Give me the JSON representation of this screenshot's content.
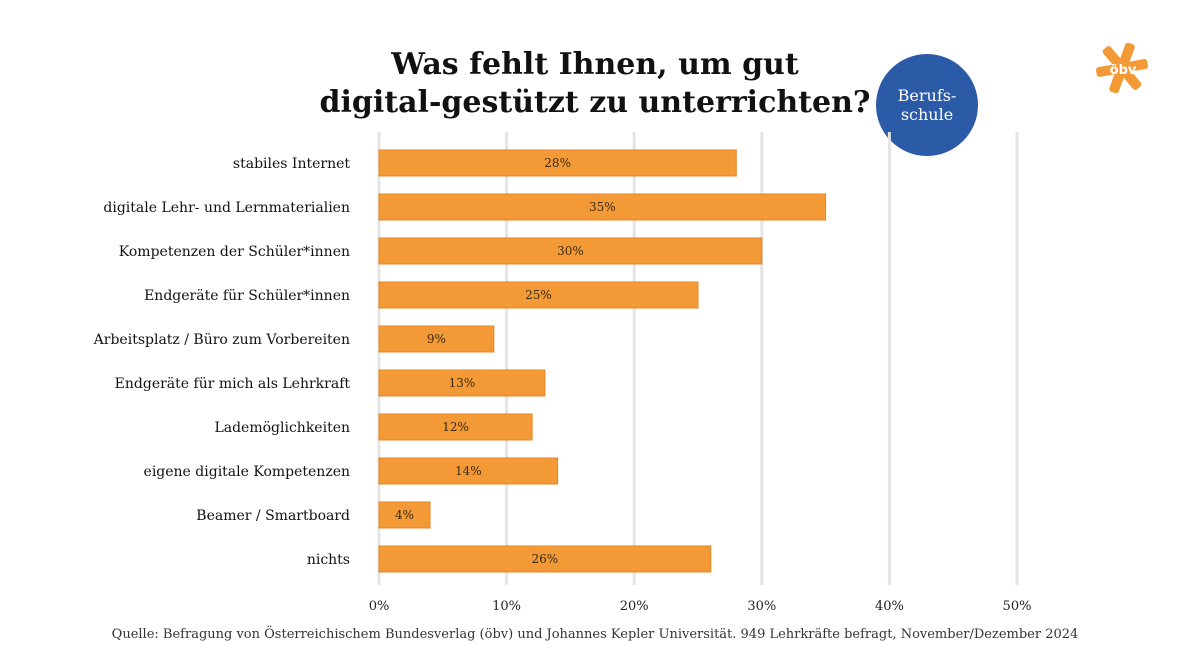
{
  "title_lines": [
    "Was fehlt Ihnen, um gut",
    "digital-gestützt zu unterrichten?"
  ],
  "badge": {
    "line1": "Berufs-",
    "line2": "schule"
  },
  "logo": {
    "text": "öbv"
  },
  "source": "Quelle: Befragung von Österreichischem Bundesverlag (öbv) und Johannes Kepler Universität. 949 Lehrkräfte befragt, November/Dezember 2024",
  "colors": {
    "bar": "#f39a36",
    "bar_stroke": "#e0862a",
    "grid": "#e4e4e4",
    "badge": "#2b5aa7",
    "logo": "#f39a36"
  },
  "chart_data": {
    "type": "bar",
    "orientation": "horizontal",
    "categories": [
      "stabiles Internet",
      "digitale Lehr- und Lernmaterialien",
      "Kompetenzen der Schüler*innen",
      "Endgeräte für Schüler*innen",
      "Arbeitsplatz / Büro zum Vorbereiten",
      "Endgeräte für mich als Lehrkraft",
      "Lademöglichkeiten",
      "eigene digitale Kompetenzen",
      "Beamer / Smartboard",
      "nichts"
    ],
    "values": [
      28,
      35,
      30,
      25,
      9,
      13,
      12,
      14,
      4,
      26
    ],
    "value_labels": [
      "28%",
      "35%",
      "30%",
      "25%",
      "9%",
      "13%",
      "12%",
      "14%",
      "4%",
      "26%"
    ],
    "xlim": [
      0,
      50
    ],
    "xticks": [
      0,
      10,
      20,
      30,
      40,
      50
    ],
    "xtick_labels": [
      "0%",
      "10%",
      "20%",
      "30%",
      "40%",
      "50%"
    ],
    "grid": true,
    "legend": "none",
    "xlabel": "",
    "ylabel": ""
  }
}
